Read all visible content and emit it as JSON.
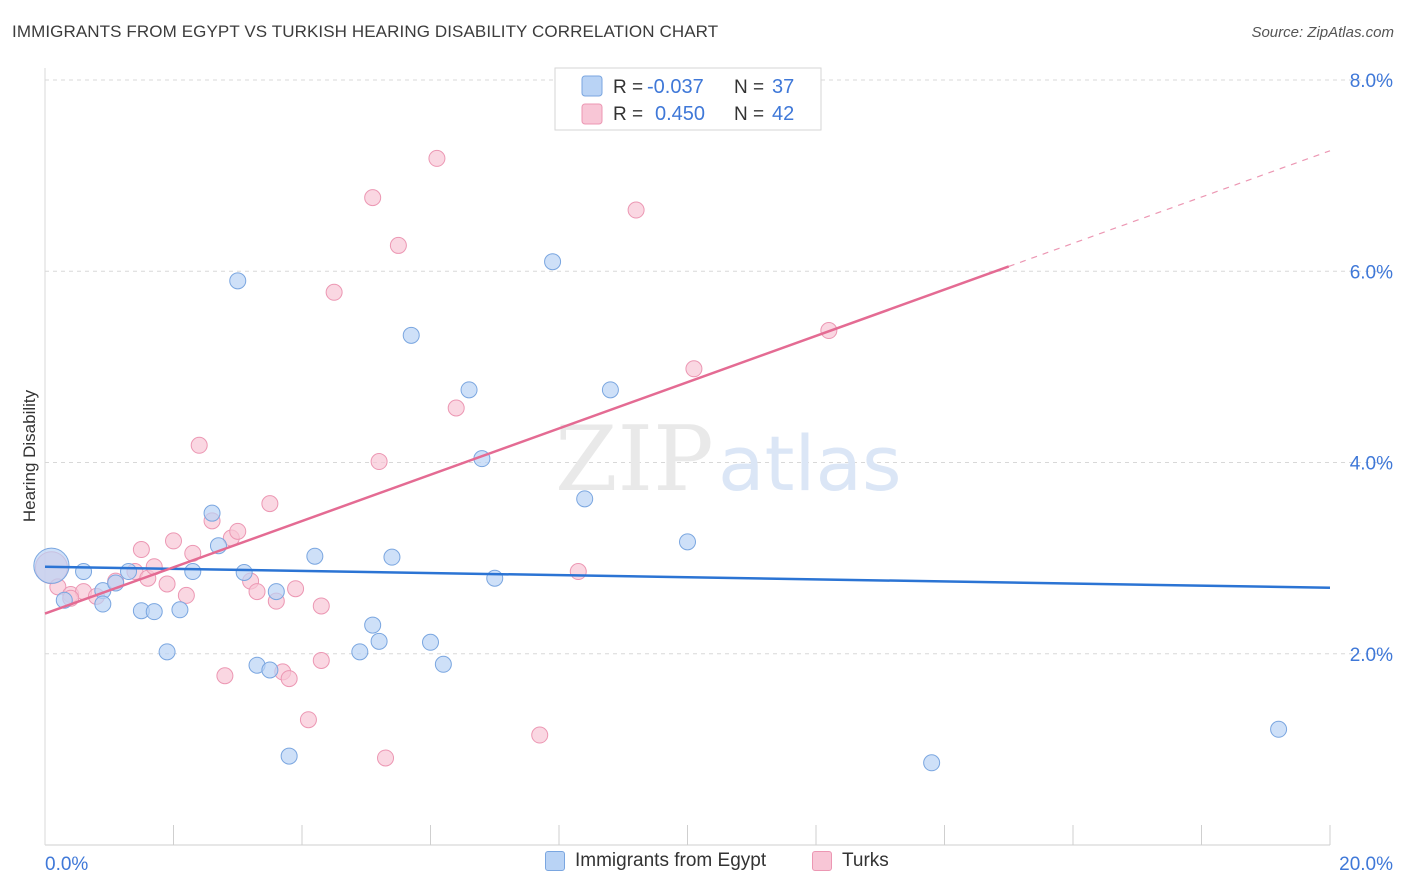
{
  "header": {
    "title": "IMMIGRANTS FROM EGYPT VS TURKISH HEARING DISABILITY CORRELATION CHART",
    "source": "Source: ZipAtlas.com"
  },
  "watermark": {
    "zip": "ZIP",
    "atlas": "atlas"
  },
  "colors": {
    "blue_fill": "#b9d3f5",
    "blue_stroke": "#7aa6e0",
    "blue_line": "#2b74d4",
    "pink_fill": "#f8c6d6",
    "pink_stroke": "#ec97b3",
    "pink_line": "#e46b93",
    "tick_label": "#3f78d8",
    "grid": "#d8d8d8"
  },
  "stats_legend": [
    {
      "r_label": "R =",
      "r_value": "-0.037",
      "n_label": "N =",
      "n_value": "37"
    },
    {
      "r_label": "R =",
      "r_value": "0.450",
      "n_label": "N =",
      "n_value": "42"
    }
  ],
  "bottom_legend": [
    {
      "label": "Immigrants from Egypt"
    },
    {
      "label": "Turks"
    }
  ],
  "chart_data": {
    "type": "scatter",
    "title": "IMMIGRANTS FROM EGYPT VS TURKISH HEARING DISABILITY CORRELATION CHART",
    "xlabel": "",
    "ylabel": "Hearing Disability",
    "xlim": [
      0,
      20
    ],
    "ylim": [
      0,
      8.0
    ],
    "x_tick_labels": [
      "0.0%",
      "20.0%"
    ],
    "y_ticks": [
      2,
      4,
      6,
      8
    ],
    "y_tick_labels": [
      "2.0%",
      "4.0%",
      "6.0%",
      "8.0%"
    ],
    "grid": true,
    "legend_placement": "top-center",
    "series": [
      {
        "name": "Immigrants from Egypt",
        "r": -0.037,
        "n": 37,
        "trend": {
          "x": [
            0,
            20
          ],
          "y": [
            2.91,
            2.69
          ]
        },
        "points": [
          {
            "x": 0.1,
            "y": 2.92,
            "s": 2.2
          },
          {
            "x": 0.3,
            "y": 2.56
          },
          {
            "x": 0.9,
            "y": 2.66
          },
          {
            "x": 0.6,
            "y": 2.86
          },
          {
            "x": 0.9,
            "y": 2.52
          },
          {
            "x": 1.1,
            "y": 2.74
          },
          {
            "x": 1.3,
            "y": 2.86
          },
          {
            "x": 1.5,
            "y": 2.45
          },
          {
            "x": 1.7,
            "y": 2.44
          },
          {
            "x": 1.9,
            "y": 2.02
          },
          {
            "x": 2.1,
            "y": 2.46
          },
          {
            "x": 2.3,
            "y": 2.86
          },
          {
            "x": 2.6,
            "y": 3.47
          },
          {
            "x": 2.7,
            "y": 3.13
          },
          {
            "x": 3.0,
            "y": 5.9
          },
          {
            "x": 3.1,
            "y": 2.85
          },
          {
            "x": 3.3,
            "y": 1.88
          },
          {
            "x": 3.5,
            "y": 1.83
          },
          {
            "x": 3.6,
            "y": 2.65
          },
          {
            "x": 3.8,
            "y": 0.93
          },
          {
            "x": 4.2,
            "y": 3.02
          },
          {
            "x": 4.9,
            "y": 2.02
          },
          {
            "x": 5.1,
            "y": 2.3
          },
          {
            "x": 5.2,
            "y": 2.13
          },
          {
            "x": 5.4,
            "y": 3.01
          },
          {
            "x": 5.7,
            "y": 5.33
          },
          {
            "x": 6.0,
            "y": 2.12
          },
          {
            "x": 6.2,
            "y": 1.89
          },
          {
            "x": 6.6,
            "y": 4.76
          },
          {
            "x": 6.8,
            "y": 4.04
          },
          {
            "x": 7.0,
            "y": 2.79
          },
          {
            "x": 7.9,
            "y": 6.1
          },
          {
            "x": 8.4,
            "y": 3.62
          },
          {
            "x": 8.8,
            "y": 4.76
          },
          {
            "x": 10.0,
            "y": 3.17
          },
          {
            "x": 13.8,
            "y": 0.86
          },
          {
            "x": 19.2,
            "y": 1.21
          }
        ]
      },
      {
        "name": "Turks",
        "r": 0.45,
        "n": 42,
        "trend": {
          "x": [
            0,
            15
          ],
          "y": [
            2.42,
            6.05
          ]
        },
        "trend_dashed": {
          "x": [
            15,
            20
          ],
          "y": [
            6.05,
            7.26
          ]
        },
        "points": [
          {
            "x": 0.1,
            "y": 2.9,
            "s": 2.0
          },
          {
            "x": 0.2,
            "y": 2.7
          },
          {
            "x": 0.4,
            "y": 2.62
          },
          {
            "x": 0.6,
            "y": 2.65
          },
          {
            "x": 0.8,
            "y": 2.6
          },
          {
            "x": 1.1,
            "y": 2.76
          },
          {
            "x": 1.4,
            "y": 2.86
          },
          {
            "x": 1.5,
            "y": 3.09
          },
          {
            "x": 1.6,
            "y": 2.79
          },
          {
            "x": 1.7,
            "y": 2.91
          },
          {
            "x": 1.9,
            "y": 2.73
          },
          {
            "x": 2.0,
            "y": 3.18
          },
          {
            "x": 2.2,
            "y": 2.61
          },
          {
            "x": 2.3,
            "y": 3.05
          },
          {
            "x": 2.4,
            "y": 4.18
          },
          {
            "x": 2.6,
            "y": 3.39
          },
          {
            "x": 2.8,
            "y": 1.77
          },
          {
            "x": 2.9,
            "y": 3.21
          },
          {
            "x": 3.0,
            "y": 3.28
          },
          {
            "x": 3.2,
            "y": 2.76
          },
          {
            "x": 3.3,
            "y": 2.65
          },
          {
            "x": 3.5,
            "y": 3.57
          },
          {
            "x": 3.6,
            "y": 2.55
          },
          {
            "x": 3.7,
            "y": 1.81
          },
          {
            "x": 3.8,
            "y": 1.74
          },
          {
            "x": 3.9,
            "y": 2.68
          },
          {
            "x": 4.1,
            "y": 1.31
          },
          {
            "x": 4.3,
            "y": 1.93
          },
          {
            "x": 4.3,
            "y": 2.5
          },
          {
            "x": 4.5,
            "y": 5.78
          },
          {
            "x": 5.1,
            "y": 6.77
          },
          {
            "x": 5.2,
            "y": 4.01
          },
          {
            "x": 5.3,
            "y": 0.91
          },
          {
            "x": 5.5,
            "y": 6.27
          },
          {
            "x": 6.1,
            "y": 7.18
          },
          {
            "x": 6.4,
            "y": 4.57
          },
          {
            "x": 7.7,
            "y": 1.15
          },
          {
            "x": 8.3,
            "y": 2.86
          },
          {
            "x": 9.2,
            "y": 6.64
          },
          {
            "x": 10.1,
            "y": 4.98
          },
          {
            "x": 12.2,
            "y": 5.38
          },
          {
            "x": 0.4,
            "y": 2.58
          }
        ]
      }
    ]
  }
}
